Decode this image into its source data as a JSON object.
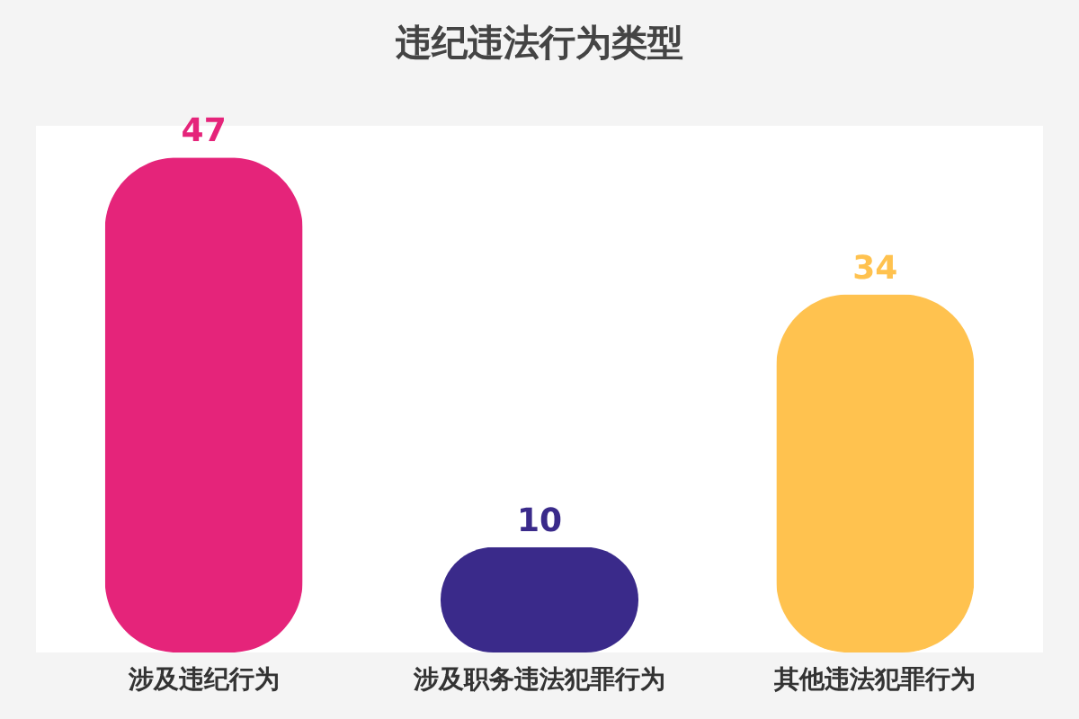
{
  "chart_data": {
    "type": "bar",
    "title": "违纪违法行为类型",
    "categories": [
      "涉及违纪行为",
      "涉及职务违法犯罪行为",
      "其他违法犯罪行为"
    ],
    "values": [
      47,
      10,
      34
    ],
    "colors": [
      "#e5247a",
      "#3a2a8a",
      "#ffc24f"
    ],
    "data_labels": true
  }
}
